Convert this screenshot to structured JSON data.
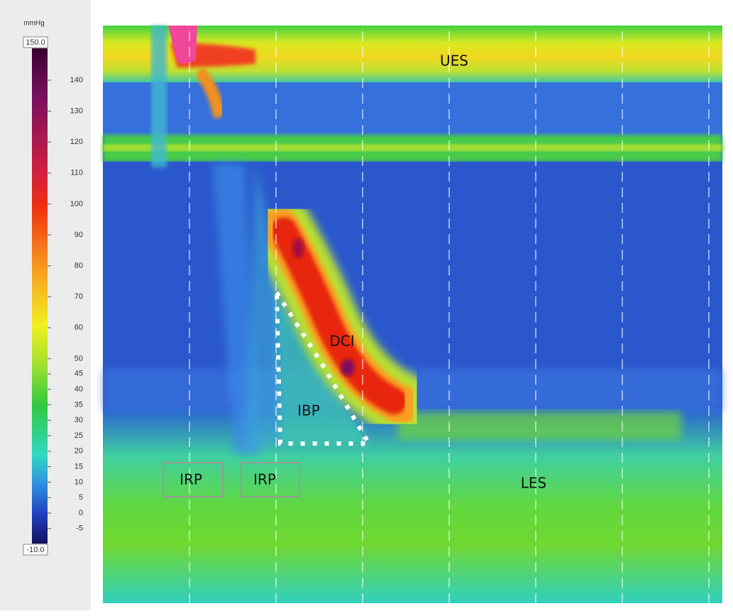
{
  "colorbar": {
    "unit": "mmHg",
    "max_label": "150.0",
    "min_label": "-10.0",
    "ticks": [
      140,
      130,
      120,
      110,
      100,
      90,
      80,
      70,
      60,
      50,
      45,
      40,
      35,
      30,
      25,
      20,
      15,
      10,
      5,
      0,
      -5
    ]
  },
  "annotations": {
    "ues": "UES",
    "dci": "DCI",
    "ibp": "IBP",
    "irp_1": "IRP",
    "irp_2": "IRP",
    "les": "LES"
  }
}
